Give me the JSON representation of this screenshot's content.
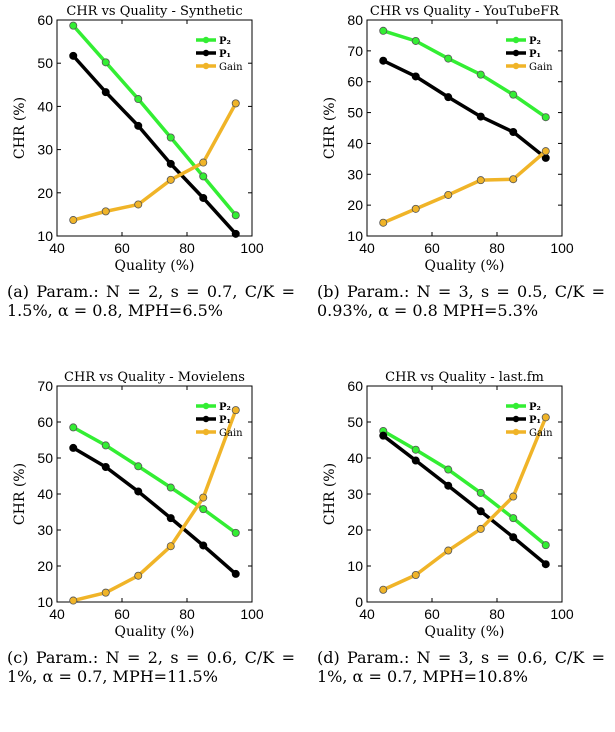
{
  "chart_data": [
    {
      "type": "line",
      "title": "CHR vs Quality - Synthetic",
      "xlabel": "Quality (%)",
      "ylabel": "CHR (%)",
      "xlim": [
        40,
        100
      ],
      "ylim": [
        10,
        60
      ],
      "xticks": [
        40,
        60,
        80,
        100
      ],
      "yticks": [
        10,
        20,
        30,
        40,
        50,
        60
      ],
      "x": [
        45,
        55,
        65,
        75,
        85,
        95
      ],
      "legend_position": "top-right",
      "series": [
        {
          "name": "P₂",
          "color": "#33ee33",
          "values": [
            58.7,
            50.2,
            41.7,
            32.8,
            23.8,
            14.8
          ]
        },
        {
          "name": "P₁",
          "color": "#000000",
          "values": [
            51.7,
            43.3,
            35.5,
            26.7,
            18.8,
            10.5
          ]
        },
        {
          "name": "Gain",
          "color": "#f0b428",
          "values": [
            13.7,
            15.7,
            17.3,
            23.0,
            27.0,
            40.7
          ]
        }
      ],
      "caption": "(a) Param.: N = 2, s = 0.7, C/K = 1.5%, α = 0.8, MPH=6.5%"
    },
    {
      "type": "line",
      "title": "CHR vs Quality - YouTubeFR",
      "xlabel": "Quality (%)",
      "ylabel": "CHR (%)",
      "xlim": [
        40,
        100
      ],
      "ylim": [
        10,
        80
      ],
      "xticks": [
        40,
        60,
        80,
        100
      ],
      "yticks": [
        10,
        20,
        30,
        40,
        50,
        60,
        70,
        80
      ],
      "x": [
        45,
        55,
        65,
        75,
        85,
        95
      ],
      "legend_position": "top-right",
      "series": [
        {
          "name": "P₂",
          "color": "#33ee33",
          "values": [
            76.5,
            73.2,
            67.5,
            62.3,
            55.8,
            48.5
          ]
        },
        {
          "name": "P₁",
          "color": "#000000",
          "values": [
            66.8,
            61.7,
            55.0,
            48.7,
            43.7,
            35.3
          ]
        },
        {
          "name": "Gain",
          "color": "#f0b428",
          "values": [
            14.3,
            18.8,
            23.3,
            28.1,
            28.4,
            37.5
          ]
        }
      ],
      "caption": "(b) Param.: N = 3, s = 0.5, C/K = 0.93%, α = 0.8 MPH=5.3%"
    },
    {
      "type": "line",
      "title": "CHR vs Quality - Movielens",
      "xlabel": "Quality (%)",
      "ylabel": "CHR (%)",
      "xlim": [
        40,
        100
      ],
      "ylim": [
        10,
        70
      ],
      "xticks": [
        40,
        60,
        80,
        100
      ],
      "yticks": [
        10,
        20,
        30,
        40,
        50,
        60,
        70
      ],
      "x": [
        45,
        55,
        65,
        75,
        85,
        95
      ],
      "legend_position": "top-right",
      "series": [
        {
          "name": "P₂",
          "color": "#33ee33",
          "values": [
            58.5,
            53.5,
            47.7,
            41.8,
            35.8,
            29.2
          ]
        },
        {
          "name": "P₁",
          "color": "#000000",
          "values": [
            52.8,
            47.5,
            40.7,
            33.3,
            25.7,
            17.8
          ]
        },
        {
          "name": "Gain",
          "color": "#f0b428",
          "values": [
            10.4,
            12.6,
            17.3,
            25.5,
            39.0,
            63.3
          ]
        }
      ],
      "caption": "(c) Param.: N = 2, s = 0.6, C/K = 1%, α = 0.7, MPH=11.5%"
    },
    {
      "type": "line",
      "title": "CHR vs Quality - last.fm",
      "xlabel": "Quality (%)",
      "ylabel": "CHR (%)",
      "xlim": [
        40,
        100
      ],
      "ylim": [
        0,
        60
      ],
      "xticks": [
        40,
        60,
        80,
        100
      ],
      "yticks": [
        0,
        10,
        20,
        30,
        40,
        50,
        60
      ],
      "x": [
        45,
        55,
        65,
        75,
        85,
        95
      ],
      "legend_position": "top-right",
      "series": [
        {
          "name": "P₂",
          "color": "#33ee33",
          "values": [
            47.5,
            42.3,
            36.8,
            30.3,
            23.3,
            15.8
          ]
        },
        {
          "name": "P₁",
          "color": "#000000",
          "values": [
            46.2,
            39.3,
            32.3,
            25.2,
            18.0,
            10.5
          ]
        },
        {
          "name": "Gain",
          "color": "#f0b428",
          "values": [
            3.4,
            7.5,
            14.3,
            20.3,
            29.3,
            51.3
          ]
        }
      ],
      "caption": "(d) Param.: N = 3, s = 0.6, C/K = 1%, α = 0.7, MPH=10.8%"
    }
  ]
}
